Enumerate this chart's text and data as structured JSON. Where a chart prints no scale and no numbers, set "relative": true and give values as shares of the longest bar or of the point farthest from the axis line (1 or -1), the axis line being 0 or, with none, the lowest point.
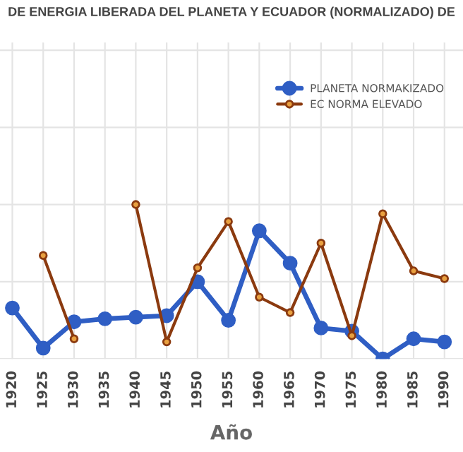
{
  "chart_data": {
    "type": "line",
    "title": "DE ENERGIA LIBERADA DEL PLANETA Y ECUADOR (NORMALIZADO) DE",
    "xlabel": "Año",
    "relative": true,
    "categories": [
      "1920",
      "1925",
      "1930",
      "1935",
      "1940",
      "1945",
      "1950",
      "1955",
      "1960",
      "1965",
      "1970",
      "1975",
      "1980",
      "1985",
      "1990"
    ],
    "series": [
      {
        "name": "PLANETA NORMAKIZADO",
        "color": "#2f5ec4",
        "values": [
          0.33,
          0.07,
          0.24,
          0.26,
          0.27,
          0.28,
          0.5,
          0.25,
          0.83,
          0.62,
          0.2,
          0.18,
          0.0,
          0.13,
          0.11
        ]
      },
      {
        "name": "EC NORMA ELEVADO",
        "color": "#8b3a0f",
        "values": [
          null,
          0.67,
          0.13,
          null,
          1.0,
          0.11,
          0.59,
          0.89,
          0.4,
          0.3,
          0.75,
          0.15,
          0.94,
          0.57,
          0.52
        ]
      }
    ],
    "grid": true,
    "legend": "top right",
    "marker": "circle",
    "line_style": "solid"
  }
}
